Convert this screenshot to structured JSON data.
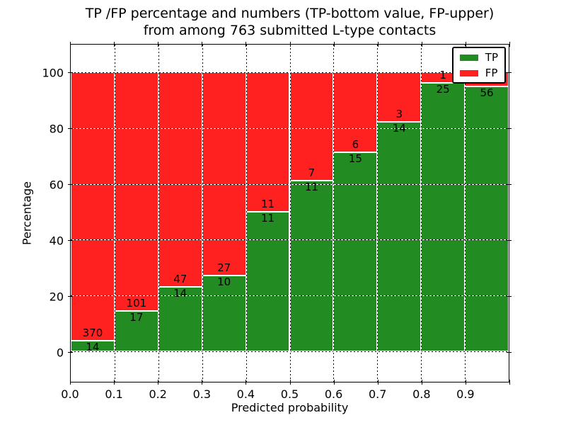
{
  "title": {
    "line1": "TP /FP percentage and numbers (TP-bottom value, FP-upper)",
    "line2": "from among 763 submitted L-type contacts"
  },
  "chart_data": {
    "type": "bar",
    "stacked": true,
    "normalized": "each bin scaled to 100%",
    "title": "TP /FP percentage and numbers (TP-bottom value, FP-upper) from among 763 submitted L-type contacts",
    "xlabel": "Predicted probability",
    "ylabel": "Percentage",
    "total_submitted": 763,
    "categories": [
      "0.0-0.1",
      "0.1-0.2",
      "0.2-0.3",
      "0.3-0.4",
      "0.4-0.5",
      "0.5-0.6",
      "0.6-0.7",
      "0.7-0.8",
      "0.8-0.9",
      "0.9-1.0"
    ],
    "x_tick_labels": [
      "0.0",
      "0.1",
      "0.2",
      "0.3",
      "0.4",
      "0.5",
      "0.6",
      "0.7",
      "0.8",
      "0.9"
    ],
    "y_ticks": [
      0,
      20,
      40,
      60,
      80,
      100
    ],
    "ylim": [
      -11,
      110
    ],
    "xlim": [
      0.0,
      1.0
    ],
    "grid": "dotted, drawn over bars",
    "legend": {
      "position": "upper right",
      "entries": [
        "TP",
        "FP"
      ]
    },
    "series": [
      {
        "name": "TP",
        "color": "#228B22",
        "counts": [
          14,
          17,
          14,
          10,
          11,
          11,
          15,
          14,
          25,
          56
        ]
      },
      {
        "name": "FP",
        "color": "#FF2020",
        "counts": [
          370,
          101,
          47,
          27,
          11,
          7,
          6,
          3,
          1,
          3
        ]
      }
    ],
    "tp_percent_of_bin": [
      3.6,
      14.4,
      23.0,
      27.0,
      50.0,
      61.1,
      71.4,
      82.4,
      96.2,
      94.9
    ],
    "tp_labels": [
      "14",
      "17",
      "14",
      "10",
      "11",
      "11",
      "15",
      "14",
      "25",
      "56"
    ],
    "fp_labels": [
      "370",
      "101",
      "47",
      "27",
      "11",
      "7",
      "6",
      "3",
      "1",
      ""
    ],
    "note": "last bin FP count label is hidden behind the legend box"
  },
  "colors": {
    "tp": "#228B22",
    "fp": "#FF2020",
    "text": "#000000",
    "frame": "#000000",
    "background": "#FFFFFF"
  }
}
